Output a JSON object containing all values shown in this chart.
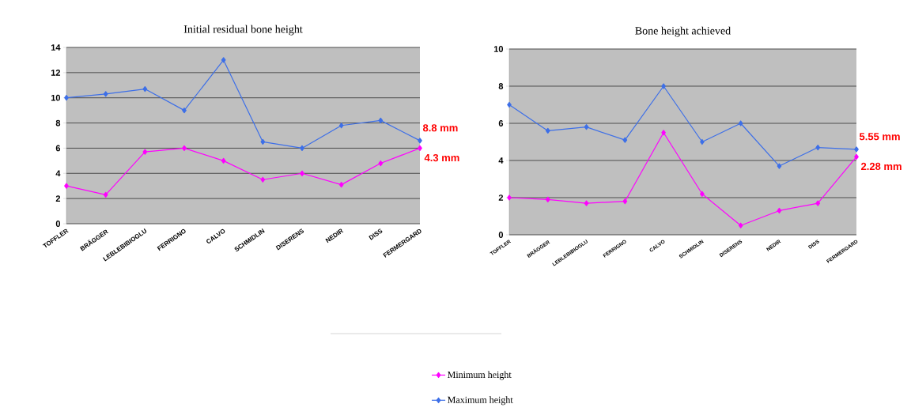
{
  "chart_data": [
    {
      "type": "line",
      "title": "Initial residual bone height",
      "categories": [
        "TOFFLER",
        "BRÄGGER",
        "LEBLEBIBIOGLU",
        "FERRIGNO",
        "CALVO",
        "SCHMIDLIN",
        "DISERENS",
        "NEDIR",
        "DISS",
        "FERMERGARD"
      ],
      "series": [
        {
          "name": "Minimum height",
          "color": "#ff00ff",
          "values": [
            3,
            2.3,
            5.7,
            6,
            5,
            3.5,
            4,
            3.1,
            4.8,
            6
          ]
        },
        {
          "name": "Maximum height",
          "color": "#3d6fe8",
          "values": [
            10,
            10.3,
            10.7,
            9,
            13,
            6.5,
            6,
            7.8,
            8.2,
            6.6
          ]
        }
      ],
      "ylim": [
        0,
        14
      ],
      "yticks": [
        0,
        2,
        4,
        6,
        8,
        10,
        12,
        14
      ],
      "grid": "y",
      "marker": "diamond",
      "legend": "bottom",
      "annotations": [
        "8.8 mm",
        "4.3 mm"
      ]
    },
    {
      "type": "line",
      "title": "Bone height  achieved",
      "categories": [
        "TOFFLER",
        "BRÄGGER",
        "LEBLEBIBIOGLU",
        "FERRIGNO",
        "CALVO",
        "SCHMIDLIN",
        "DISERENS",
        "NEDIR",
        "DISS",
        "FERMERGARD"
      ],
      "series": [
        {
          "color": "#ff00ff",
          "values": [
            2,
            1.9,
            1.7,
            1.8,
            5.5,
            2.2,
            0.5,
            1.3,
            1.7,
            4.2
          ]
        },
        {
          "color": "#3d6fe8",
          "values": [
            7,
            5.6,
            5.8,
            5.1,
            8,
            5,
            6,
            3.7,
            4.7,
            4.6
          ]
        }
      ],
      "ylim": [
        0,
        10
      ],
      "yticks": [
        0,
        2,
        4,
        6,
        8,
        10
      ],
      "grid": "y",
      "marker": "diamond",
      "annotations": [
        "5.55 mm",
        "2.28 mm"
      ]
    }
  ]
}
